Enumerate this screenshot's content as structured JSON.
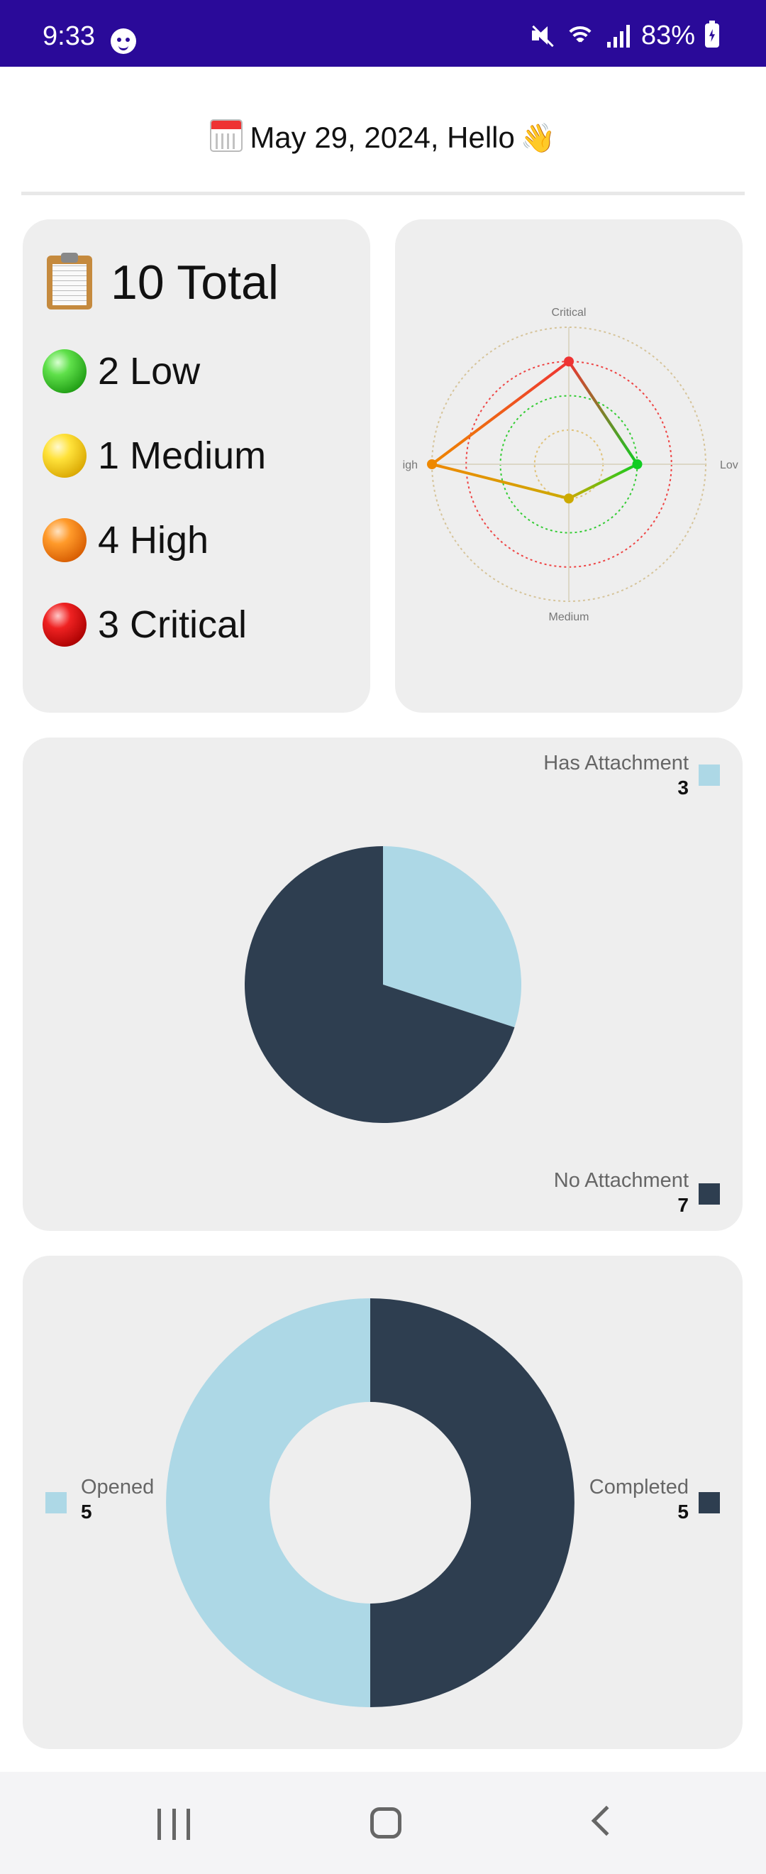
{
  "status_bar": {
    "time": "9:33",
    "battery": "83%"
  },
  "header": {
    "greeting": "May 29, 2024, Hello",
    "calendar_icon": "calendar-icon",
    "wave_icon": "waving-hand-icon"
  },
  "summary": {
    "total_label": "10 Total",
    "severities": [
      {
        "label": "2 Low",
        "color": "#2fbf1f"
      },
      {
        "label": "1 Medium",
        "color": "#f2c80a"
      },
      {
        "label": "4 High",
        "color": "#f37b12"
      },
      {
        "label": "3 Critical",
        "color": "#dd1111"
      }
    ]
  },
  "chart_data": [
    {
      "type": "radar",
      "axes": [
        "Critical",
        "Low",
        "Medium",
        "High"
      ],
      "axis_labels_visible": [
        "Critical",
        "Lov",
        "Medium",
        "igh"
      ],
      "values": [
        3,
        2,
        1,
        4
      ],
      "point_colors": [
        "#ee3333",
        "#11cc22",
        "#ccaa00",
        "#ee8800"
      ],
      "rings": 4,
      "range": [
        0,
        4
      ]
    },
    {
      "type": "pie",
      "series": [
        {
          "name": "Has Attachment",
          "value": 3,
          "color": "#add8e6"
        },
        {
          "name": "No Attachment",
          "value": 7,
          "color": "#2e3e50"
        }
      ]
    },
    {
      "type": "donut",
      "series": [
        {
          "name": "Completed",
          "value": 5,
          "color": "#2e3e50"
        },
        {
          "name": "Opened",
          "value": 5,
          "color": "#add8e6"
        }
      ]
    }
  ]
}
